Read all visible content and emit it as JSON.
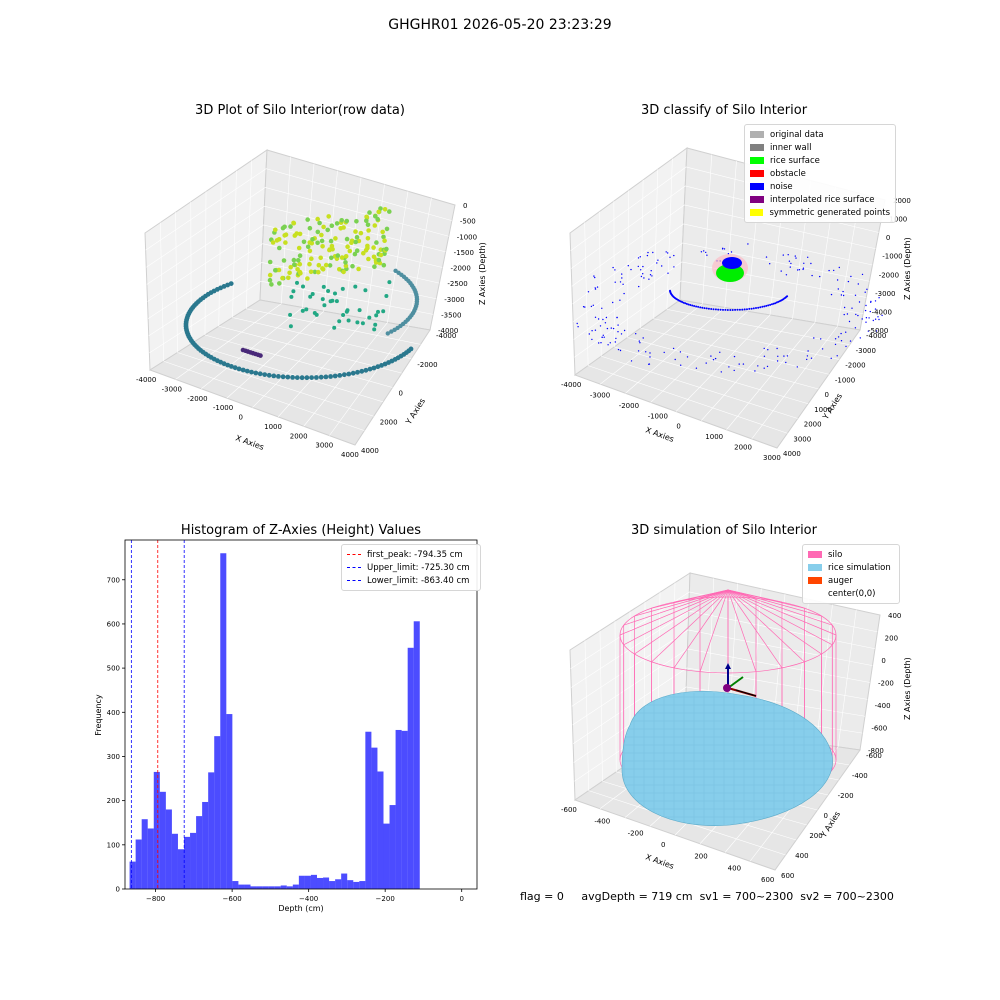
{
  "figure": {
    "suptitle": "GHGHR01 2026-05-20 23:23:29"
  },
  "panel_raw": {
    "title": "3D Plot of Silo Interior(row data)",
    "xlabel": "X Axies",
    "ylabel": "Y Axies",
    "zlabel": "Z Axies (Depth)",
    "xticks": [
      "-4000",
      "-3000",
      "-2000",
      "-1000",
      "0",
      "1000",
      "2000",
      "3000",
      "4000"
    ],
    "yticks": [
      "-4000",
      "-2000",
      "0",
      "2000",
      "4000"
    ],
    "zticks": [
      "0",
      "-500",
      "-1000",
      "-1500",
      "-2000",
      "-2500",
      "-3000",
      "-3500",
      "-4000"
    ]
  },
  "panel_classify": {
    "title": "3D classify of Silo Interior",
    "xlabel": "X Axies",
    "ylabel": "Y Axies",
    "zlabel": "Z Axies (Depth)",
    "xticks": [
      "-4000",
      "-3000",
      "-2000",
      "-1000",
      "0",
      "1000",
      "2000",
      "3000"
    ],
    "yticks": [
      "-4000",
      "-3000",
      "-2000",
      "-1000",
      "0",
      "1000",
      "2000",
      "3000",
      "4000"
    ],
    "zticks": [
      "2000",
      "1000",
      "0",
      "-1000",
      "-2000",
      "-3000",
      "-4000",
      "-5000"
    ],
    "legend": [
      {
        "label": "original data",
        "color": "#b0b0b0"
      },
      {
        "label": "inner wall",
        "color": "#808080"
      },
      {
        "label": "rice surface",
        "color": "#00ff00"
      },
      {
        "label": "obstacle",
        "color": "#ff0000"
      },
      {
        "label": "noise",
        "color": "#0000ff"
      },
      {
        "label": "interpolated rice surface",
        "color": "#800080"
      },
      {
        "label": "symmetric generated points",
        "color": "#ffff00"
      }
    ]
  },
  "panel_sim": {
    "title": "3D simulation of Silo Interior",
    "xlabel": "X Axies",
    "ylabel": "Y Axies",
    "zlabel": "Z Axies (Depth)",
    "xticks": [
      "-600",
      "-400",
      "-200",
      "0",
      "200",
      "400",
      "600"
    ],
    "yticks": [
      "-600",
      "-400",
      "-200",
      "0",
      "200",
      "400",
      "600"
    ],
    "zticks": [
      "400",
      "200",
      "0",
      "-200",
      "-400",
      "-600",
      "-800"
    ],
    "legend": [
      {
        "label": "silo",
        "color": "#ff69b4"
      },
      {
        "label": "rice simulation",
        "color": "#87ceeb"
      },
      {
        "label": "auger",
        "color": "#ff4500"
      },
      {
        "label": "center(0,0)",
        "color": "#ffffff"
      }
    ]
  },
  "chart_data": {
    "type": "bar",
    "title": "Histogram of Z-Axies (Height) Values",
    "xlabel": "Depth (cm)",
    "ylabel": "Frequency",
    "xlim": [
      -880,
      40
    ],
    "ylim": [
      0,
      790
    ],
    "xticks": [
      -800,
      -600,
      -400,
      -200,
      0
    ],
    "yticks": [
      0,
      100,
      200,
      300,
      400,
      500,
      600,
      700
    ],
    "bar_color": "#0000ff",
    "bin_start": -868,
    "bin_width": 15.8,
    "values": [
      62,
      112,
      158,
      137,
      265,
      220,
      180,
      125,
      90,
      118,
      127,
      165,
      197,
      264,
      346,
      760,
      396,
      18,
      10,
      10,
      6,
      6,
      6,
      6,
      6,
      8,
      6,
      10,
      30,
      30,
      32,
      25,
      26,
      18,
      22,
      35,
      20,
      16,
      18,
      356,
      320,
      266,
      148,
      190,
      360,
      358,
      546,
      606
    ],
    "lines": [
      {
        "label": "first_peak: -794.35 cm",
        "x": -794.35,
        "color": "#ff0000"
      },
      {
        "label": "Upper_limit: -725.30 cm",
        "x": -725.3,
        "color": "#0000ff"
      },
      {
        "label": "Lower_limit: -863.40 cm",
        "x": -863.4,
        "color": "#0000ff"
      }
    ]
  },
  "footer": {
    "flag": "flag = 0",
    "avg": "avgDepth = 719 cm",
    "sv1": "sv1 = 700~2300",
    "sv2": "sv2 = 700~2300"
  }
}
